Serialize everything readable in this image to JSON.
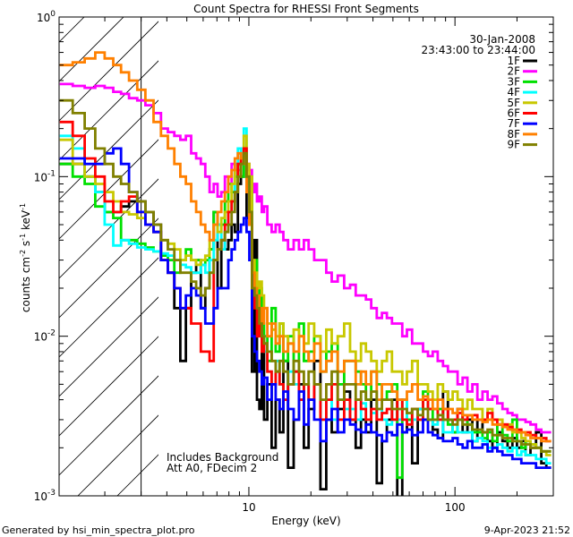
{
  "chart_data": {
    "type": "line",
    "title": "Count Spectra for RHESSI Front Segments",
    "xlabel": "Energy (keV)",
    "ylabel_main": "counts cm",
    "ylabel_sup1": "-2",
    "ylabel_mid1": " s",
    "ylabel_sup2": "-1",
    "ylabel_mid2": " keV",
    "ylabel_sup3": "-1",
    "xscale": "log",
    "yscale": "log",
    "xlim": [
      1.2,
      300
    ],
    "ylim": [
      0.001,
      1
    ],
    "x_ticks": [
      {
        "value": 10,
        "label": "10"
      },
      {
        "value": 100,
        "label": "100"
      }
    ],
    "y_ticks": [
      {
        "value": 1,
        "base": "10",
        "exp": "0"
      },
      {
        "value": 0.1,
        "base": "10",
        "exp": "-1"
      },
      {
        "value": 0.01,
        "base": "10",
        "exp": "-2"
      },
      {
        "value": 0.001,
        "base": "10",
        "exp": "-3"
      }
    ],
    "date": "30-Jan-2008",
    "time_range": "23:43:00 to 23:44:00",
    "attenuator_boundary_keV": 3,
    "annotation_lines": [
      "Includes Background",
      "Att A0, FDecim 2"
    ],
    "energies": [
      1.3,
      1.5,
      1.7,
      1.9,
      2.1,
      2.3,
      2.5,
      2.75,
      3.0,
      3.3,
      3.6,
      3.9,
      4.2,
      4.5,
      4.8,
      5.1,
      5.4,
      5.7,
      6.0,
      6.3,
      6.6,
      6.9,
      7.2,
      7.5,
      7.8,
      8.1,
      8.4,
      8.7,
      9.0,
      9.3,
      9.6,
      9.9,
      10.2,
      10.5,
      10.8,
      11.1,
      11.4,
      11.7,
      12.0,
      12.6,
      13.2,
      13.8,
      14.4,
      15.0,
      16.0,
      17.0,
      18.0,
      19.0,
      20.0,
      21.5,
      23.0,
      24.5,
      26.0,
      28.0,
      30.0,
      32.0,
      34.0,
      36.0,
      38.0,
      40.5,
      43.0,
      45.5,
      48.0,
      51.0,
      54.0,
      57.0,
      60.0,
      64.0,
      68.0,
      72.0,
      76.0,
      80.0,
      85.0,
      90.0,
      95.0,
      100.0,
      106.0,
      112.0,
      118.0,
      125.0,
      132.0,
      140.0,
      148.0,
      156.0,
      165.0,
      175.0,
      185.0,
      195.0,
      205.0,
      215.0,
      225.0,
      240.0,
      255.0,
      270.0,
      285.0
    ],
    "series": [
      {
        "name": "1F",
        "color": "#000000",
        "values": [
          0.12,
          0.12,
          0.1,
          0.08,
          0.06,
          0.06,
          0.065,
          0.07,
          0.07,
          0.06,
          0.05,
          0.03,
          0.025,
          0.015,
          0.007,
          0.015,
          0.025,
          0.03,
          0.015,
          0.02,
          0.035,
          0.06,
          0.02,
          0.04,
          0.035,
          0.04,
          0.05,
          0.045,
          0.09,
          0.1,
          0.14,
          0.055,
          0.08,
          0.006,
          0.04,
          0.004,
          0.0035,
          0.01,
          0.003,
          0.005,
          0.002,
          0.004,
          0.0025,
          0.007,
          0.0015,
          0.003,
          0.005,
          0.002,
          0.0035,
          0.007,
          0.0011,
          0.003,
          0.0025,
          0.0035,
          0.0045,
          0.003,
          0.002,
          0.003,
          0.0025,
          0.004,
          0.0012,
          0.0022,
          0.003,
          0.004,
          0.0009,
          0.0025,
          0.003,
          0.0016,
          0.0035,
          0.003,
          0.003,
          0.0026,
          0.0023,
          0.0045,
          0.003,
          0.0025,
          0.0035,
          0.0025,
          0.003,
          0.0022,
          0.003,
          0.0025,
          0.0022,
          0.002,
          0.0025,
          0.0022,
          0.002,
          0.0023,
          0.002,
          0.0022,
          0.0018,
          0.002,
          0.0025,
          0.0016,
          0.0015
        ]
      },
      {
        "name": "2F",
        "color": "#ff00ff",
        "values": [
          0.38,
          0.37,
          0.36,
          0.37,
          0.36,
          0.34,
          0.33,
          0.31,
          0.3,
          0.28,
          0.25,
          0.2,
          0.19,
          0.18,
          0.17,
          0.18,
          0.14,
          0.13,
          0.12,
          0.1,
          0.08,
          0.09,
          0.075,
          0.08,
          0.1,
          0.09,
          0.12,
          0.1,
          0.11,
          0.12,
          0.15,
          0.12,
          0.11,
          0.08,
          0.09,
          0.07,
          0.075,
          0.06,
          0.065,
          0.05,
          0.045,
          0.05,
          0.045,
          0.04,
          0.035,
          0.04,
          0.035,
          0.04,
          0.035,
          0.03,
          0.03,
          0.025,
          0.022,
          0.024,
          0.02,
          0.021,
          0.018,
          0.018,
          0.017,
          0.015,
          0.013,
          0.014,
          0.013,
          0.012,
          0.012,
          0.01,
          0.011,
          0.009,
          0.009,
          0.008,
          0.0075,
          0.008,
          0.007,
          0.0065,
          0.006,
          0.006,
          0.005,
          0.0055,
          0.0045,
          0.005,
          0.004,
          0.0045,
          0.004,
          0.0042,
          0.0038,
          0.0035,
          0.0033,
          0.0032,
          0.003,
          0.003,
          0.0029,
          0.0028,
          0.0026,
          0.0025,
          0.0025
        ]
      },
      {
        "name": "3F",
        "color": "#00e000",
        "values": [
          0.12,
          0.1,
          0.09,
          0.065,
          0.06,
          0.055,
          0.04,
          0.04,
          0.038,
          0.036,
          0.034,
          0.032,
          0.03,
          0.025,
          0.03,
          0.035,
          0.03,
          0.03,
          0.028,
          0.03,
          0.035,
          0.06,
          0.05,
          0.05,
          0.07,
          0.09,
          0.08,
          0.1,
          0.12,
          0.1,
          0.15,
          0.09,
          0.1,
          0.02,
          0.03,
          0.015,
          0.02,
          0.012,
          0.01,
          0.007,
          0.015,
          0.008,
          0.012,
          0.007,
          0.01,
          0.006,
          0.012,
          0.007,
          0.008,
          0.01,
          0.006,
          0.008,
          0.009,
          0.005,
          0.007,
          0.007,
          0.006,
          0.005,
          0.004,
          0.006,
          0.005,
          0.004,
          0.0045,
          0.005,
          0.0013,
          0.004,
          0.003,
          0.0035,
          0.003,
          0.0045,
          0.0035,
          0.003,
          0.0035,
          0.003,
          0.0028,
          0.0025,
          0.003,
          0.003,
          0.0028,
          0.0025,
          0.0025,
          0.0023,
          0.0025,
          0.0022,
          0.0028,
          0.0024,
          0.0022,
          0.003,
          0.0022,
          0.002,
          0.0022,
          0.0021,
          0.002,
          0.0019,
          0.0019
        ]
      },
      {
        "name": "4F",
        "color": "#00ffff",
        "values": [
          0.18,
          0.15,
          0.1,
          0.08,
          0.05,
          0.037,
          0.04,
          0.038,
          0.036,
          0.035,
          0.034,
          0.033,
          0.032,
          0.03,
          0.028,
          0.027,
          0.025,
          0.025,
          0.028,
          0.025,
          0.03,
          0.04,
          0.05,
          0.035,
          0.045,
          0.06,
          0.07,
          0.12,
          0.15,
          0.12,
          0.2,
          0.1,
          0.06,
          0.02,
          0.02,
          0.015,
          0.012,
          0.01,
          0.008,
          0.006,
          0.005,
          0.007,
          0.005,
          0.004,
          0.006,
          0.005,
          0.004,
          0.005,
          0.004,
          0.005,
          0.003,
          0.004,
          0.003,
          0.004,
          0.0035,
          0.0035,
          0.003,
          0.0038,
          0.003,
          0.0033,
          0.0035,
          0.003,
          0.0028,
          0.003,
          0.003,
          0.004,
          0.0028,
          0.003,
          0.0035,
          0.003,
          0.003,
          0.0028,
          0.003,
          0.0025,
          0.0025,
          0.003,
          0.0025,
          0.0025,
          0.0025,
          0.0022,
          0.0023,
          0.0022,
          0.002,
          0.002,
          0.0021,
          0.002,
          0.0019,
          0.002,
          0.0018,
          0.0019,
          0.0018,
          0.0018,
          0.0017,
          0.0017,
          0.0016
        ]
      },
      {
        "name": "5F",
        "color": "#c8c800",
        "values": [
          0.17,
          0.12,
          0.1,
          0.09,
          0.08,
          0.07,
          0.06,
          0.058,
          0.055,
          0.05,
          0.045,
          0.04,
          0.038,
          0.035,
          0.03,
          0.032,
          0.03,
          0.028,
          0.03,
          0.032,
          0.04,
          0.05,
          0.045,
          0.055,
          0.06,
          0.07,
          0.09,
          0.11,
          0.12,
          0.13,
          0.18,
          0.12,
          0.1,
          0.03,
          0.025,
          0.02,
          0.022,
          0.018,
          0.015,
          0.012,
          0.011,
          0.01,
          0.012,
          0.01,
          0.009,
          0.011,
          0.01,
          0.009,
          0.012,
          0.01,
          0.008,
          0.011,
          0.009,
          0.01,
          0.012,
          0.008,
          0.007,
          0.009,
          0.008,
          0.007,
          0.006,
          0.007,
          0.008,
          0.006,
          0.006,
          0.005,
          0.006,
          0.007,
          0.005,
          0.005,
          0.0045,
          0.004,
          0.005,
          0.0045,
          0.004,
          0.0045,
          0.004,
          0.0035,
          0.004,
          0.0035,
          0.0035,
          0.003,
          0.0035,
          0.003,
          0.003,
          0.0028,
          0.0028,
          0.0025,
          0.0025,
          0.0023,
          0.0022,
          0.0021,
          0.002,
          0.0019,
          0.0018
        ]
      },
      {
        "name": "6F",
        "color": "#ff0000",
        "values": [
          0.22,
          0.18,
          0.13,
          0.1,
          0.07,
          0.06,
          0.07,
          0.075,
          0.06,
          0.05,
          0.045,
          0.03,
          0.025,
          0.02,
          0.015,
          0.015,
          0.012,
          0.012,
          0.008,
          0.008,
          0.007,
          0.03,
          0.035,
          0.04,
          0.05,
          0.06,
          0.07,
          0.08,
          0.12,
          0.13,
          0.15,
          0.08,
          0.05,
          0.02,
          0.015,
          0.01,
          0.012,
          0.008,
          0.009,
          0.006,
          0.005,
          0.006,
          0.005,
          0.004,
          0.005,
          0.006,
          0.004,
          0.005,
          0.004,
          0.005,
          0.003,
          0.004,
          0.005,
          0.003,
          0.004,
          0.003,
          0.004,
          0.0035,
          0.003,
          0.0035,
          0.003,
          0.0033,
          0.0035,
          0.003,
          0.004,
          0.003,
          0.0028,
          0.0035,
          0.003,
          0.004,
          0.0035,
          0.0035,
          0.003,
          0.0035,
          0.003,
          0.003,
          0.0033,
          0.003,
          0.0032,
          0.0032,
          0.003,
          0.003,
          0.0033,
          0.003,
          0.0028,
          0.0028,
          0.0027,
          0.0026,
          0.0026,
          0.0025,
          0.0025,
          0.0024,
          0.0023,
          0.0023,
          0.0022
        ]
      },
      {
        "name": "7F",
        "color": "#0000ff",
        "values": [
          0.13,
          0.13,
          0.12,
          0.12,
          0.14,
          0.15,
          0.12,
          0.08,
          0.06,
          0.05,
          0.045,
          0.03,
          0.025,
          0.02,
          0.015,
          0.018,
          0.02,
          0.018,
          0.015,
          0.012,
          0.012,
          0.015,
          0.02,
          0.02,
          0.02,
          0.03,
          0.035,
          0.04,
          0.045,
          0.05,
          0.055,
          0.045,
          0.03,
          0.01,
          0.008,
          0.007,
          0.006,
          0.005,
          0.0055,
          0.004,
          0.005,
          0.004,
          0.0035,
          0.0045,
          0.0035,
          0.003,
          0.0045,
          0.0028,
          0.004,
          0.003,
          0.0022,
          0.003,
          0.0035,
          0.0025,
          0.003,
          0.0028,
          0.0026,
          0.0025,
          0.0028,
          0.0025,
          0.0024,
          0.0022,
          0.0025,
          0.0024,
          0.0028,
          0.0025,
          0.0026,
          0.0024,
          0.0025,
          0.003,
          0.0025,
          0.0024,
          0.0023,
          0.0022,
          0.0022,
          0.0023,
          0.0021,
          0.002,
          0.0022,
          0.002,
          0.002,
          0.0021,
          0.0019,
          0.002,
          0.0019,
          0.0018,
          0.0018,
          0.0017,
          0.0017,
          0.0016,
          0.0016,
          0.0016,
          0.0015,
          0.0015,
          0.0015
        ]
      },
      {
        "name": "8F",
        "color": "#ff8000",
        "values": [
          0.5,
          0.52,
          0.55,
          0.6,
          0.55,
          0.5,
          0.45,
          0.4,
          0.35,
          0.3,
          0.22,
          0.18,
          0.15,
          0.12,
          0.1,
          0.09,
          0.07,
          0.06,
          0.05,
          0.045,
          0.04,
          0.05,
          0.06,
          0.07,
          0.08,
          0.1,
          0.11,
          0.13,
          0.14,
          0.13,
          0.12,
          0.08,
          0.05,
          0.025,
          0.02,
          0.018,
          0.015,
          0.012,
          0.015,
          0.01,
          0.012,
          0.009,
          0.01,
          0.008,
          0.009,
          0.008,
          0.01,
          0.008,
          0.007,
          0.009,
          0.006,
          0.007,
          0.008,
          0.006,
          0.007,
          0.007,
          0.005,
          0.006,
          0.005,
          0.006,
          0.004,
          0.005,
          0.005,
          0.0045,
          0.004,
          0.004,
          0.0045,
          0.005,
          0.004,
          0.0042,
          0.004,
          0.0035,
          0.004,
          0.0035,
          0.0035,
          0.0033,
          0.0035,
          0.0032,
          0.0032,
          0.003,
          0.003,
          0.0029,
          0.003,
          0.0028,
          0.0028,
          0.0027,
          0.0026,
          0.0026,
          0.0025,
          0.0025,
          0.0024,
          0.0023,
          0.0023,
          0.0022,
          0.0022
        ]
      },
      {
        "name": "9F",
        "color": "#808000",
        "values": [
          0.3,
          0.25,
          0.2,
          0.15,
          0.12,
          0.1,
          0.09,
          0.08,
          0.07,
          0.06,
          0.05,
          0.04,
          0.035,
          0.03,
          0.025,
          0.025,
          0.022,
          0.02,
          0.018,
          0.02,
          0.025,
          0.03,
          0.035,
          0.04,
          0.045,
          0.05,
          0.06,
          0.08,
          0.1,
          0.12,
          0.14,
          0.1,
          0.06,
          0.02,
          0.018,
          0.015,
          0.012,
          0.01,
          0.009,
          0.008,
          0.007,
          0.006,
          0.007,
          0.006,
          0.005,
          0.007,
          0.006,
          0.005,
          0.006,
          0.005,
          0.004,
          0.005,
          0.006,
          0.004,
          0.005,
          0.005,
          0.004,
          0.0045,
          0.004,
          0.0045,
          0.0035,
          0.004,
          0.004,
          0.0035,
          0.0035,
          0.0035,
          0.0033,
          0.0035,
          0.0032,
          0.0035,
          0.003,
          0.003,
          0.0032,
          0.003,
          0.003,
          0.0028,
          0.003,
          0.0028,
          0.0028,
          0.0026,
          0.0026,
          0.0025,
          0.0026,
          0.0024,
          0.0024,
          0.0023,
          0.0023,
          0.0022,
          0.0022,
          0.0021,
          0.0021,
          0.002,
          0.002,
          0.0019,
          0.0019
        ]
      }
    ]
  },
  "footer": {
    "generated_by": "Generated by hsi_min_spectra_plot.pro",
    "timestamp": "9-Apr-2023 21:52"
  }
}
